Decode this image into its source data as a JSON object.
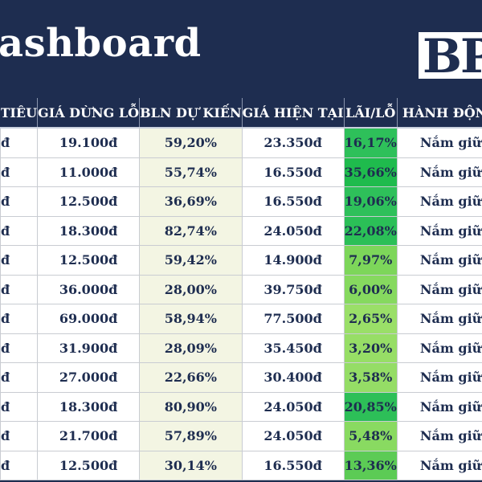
{
  "header": {
    "title": "ashboard",
    "logo_text": "BP"
  },
  "table": {
    "columns": [
      "TIÊU",
      "GIÁ DỪNG LỖ",
      "BLN DỰ KIẾN",
      "GIÁ HIỆN TẠI",
      "LÃI/LỖ",
      "HÀNH ĐỘNG"
    ],
    "rows": [
      {
        "c0": "đ",
        "stop": "19.100đ",
        "bln": "59,20%",
        "price": "23.350đ",
        "pl": "16,17%",
        "pl_color": "#2ec05a",
        "action": "Nắm giữ"
      },
      {
        "c0": "đ",
        "stop": "11.000đ",
        "bln": "55,74%",
        "price": "16.550đ",
        "pl": "35,66%",
        "pl_color": "#1fbb4d",
        "action": "Nắm giữ"
      },
      {
        "c0": "đ",
        "stop": "12.500đ",
        "bln": "36,69%",
        "price": "16.550đ",
        "pl": "19,06%",
        "pl_color": "#2ec05a",
        "action": "Nắm giữ"
      },
      {
        "c0": "đ",
        "stop": "18.300đ",
        "bln": "82,74%",
        "price": "24.050đ",
        "pl": "22,08%",
        "pl_color": "#2bbf57",
        "action": "Nắm giữ"
      },
      {
        "c0": "đ",
        "stop": "12.500đ",
        "bln": "59,42%",
        "price": "14.900đ",
        "pl": "7,97%",
        "pl_color": "#7dd65a",
        "action": "Nắm giữ"
      },
      {
        "c0": "đ",
        "stop": "36.000đ",
        "bln": "28,00%",
        "price": "39.750đ",
        "pl": "6,00%",
        "pl_color": "#86d95f",
        "action": "Nắm giữ"
      },
      {
        "c0": "đ",
        "stop": "69.000đ",
        "bln": "58,94%",
        "price": "77.500đ",
        "pl": "2,65%",
        "pl_color": "#9adf68",
        "action": "Nắm giữ"
      },
      {
        "c0": "đ",
        "stop": "31.900đ",
        "bln": "28,09%",
        "price": "35.450đ",
        "pl": "3,20%",
        "pl_color": "#97de66",
        "action": "Nắm giữ"
      },
      {
        "c0": "đ",
        "stop": "27.000đ",
        "bln": "22,66%",
        "price": "30.400đ",
        "pl": "3,58%",
        "pl_color": "#95dd66",
        "action": "Nắm giữ"
      },
      {
        "c0": "đ",
        "stop": "18.300đ",
        "bln": "80,90%",
        "price": "24.050đ",
        "pl": "20,85%",
        "pl_color": "#2dbf58",
        "action": "Nắm giữ"
      },
      {
        "c0": "đ",
        "stop": "21.700đ",
        "bln": "57,89%",
        "price": "24.050đ",
        "pl": "5,48%",
        "pl_color": "#89da61",
        "action": "Nắm giữ"
      },
      {
        "c0": "đ",
        "stop": "12.500đ",
        "bln": "30,14%",
        "price": "16.550đ",
        "pl": "13,36%",
        "pl_color": "#5ccb55",
        "action": "Nắm giữ"
      }
    ]
  }
}
